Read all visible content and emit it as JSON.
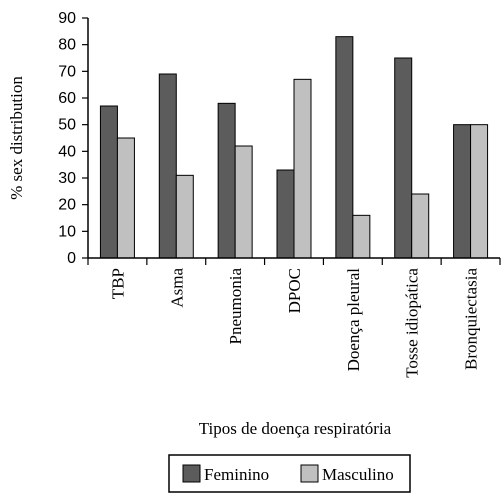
{
  "chart_data": {
    "type": "bar",
    "categories": [
      "TBP",
      "Asma",
      "Pneumonia",
      "DPOC",
      "Doença pleural",
      "Tosse idiopática",
      "Bronquiectasia"
    ],
    "series": [
      {
        "name": "Feminino",
        "values": [
          57,
          69,
          58,
          33,
          83,
          75,
          50
        ],
        "color": "#5c5c5c"
      },
      {
        "name": "Masculino",
        "values": [
          45,
          31,
          42,
          67,
          16,
          24,
          50
        ],
        "color": "#c0c0c0"
      }
    ],
    "ylabel": "% sex distribution",
    "xlabel": "Tipos de doença respiratória",
    "ylim": [
      0,
      90
    ],
    "yticks": [
      0,
      10,
      20,
      30,
      40,
      50,
      60,
      70,
      80,
      90
    ],
    "grid": false,
    "legend_position": "bottom-center"
  }
}
